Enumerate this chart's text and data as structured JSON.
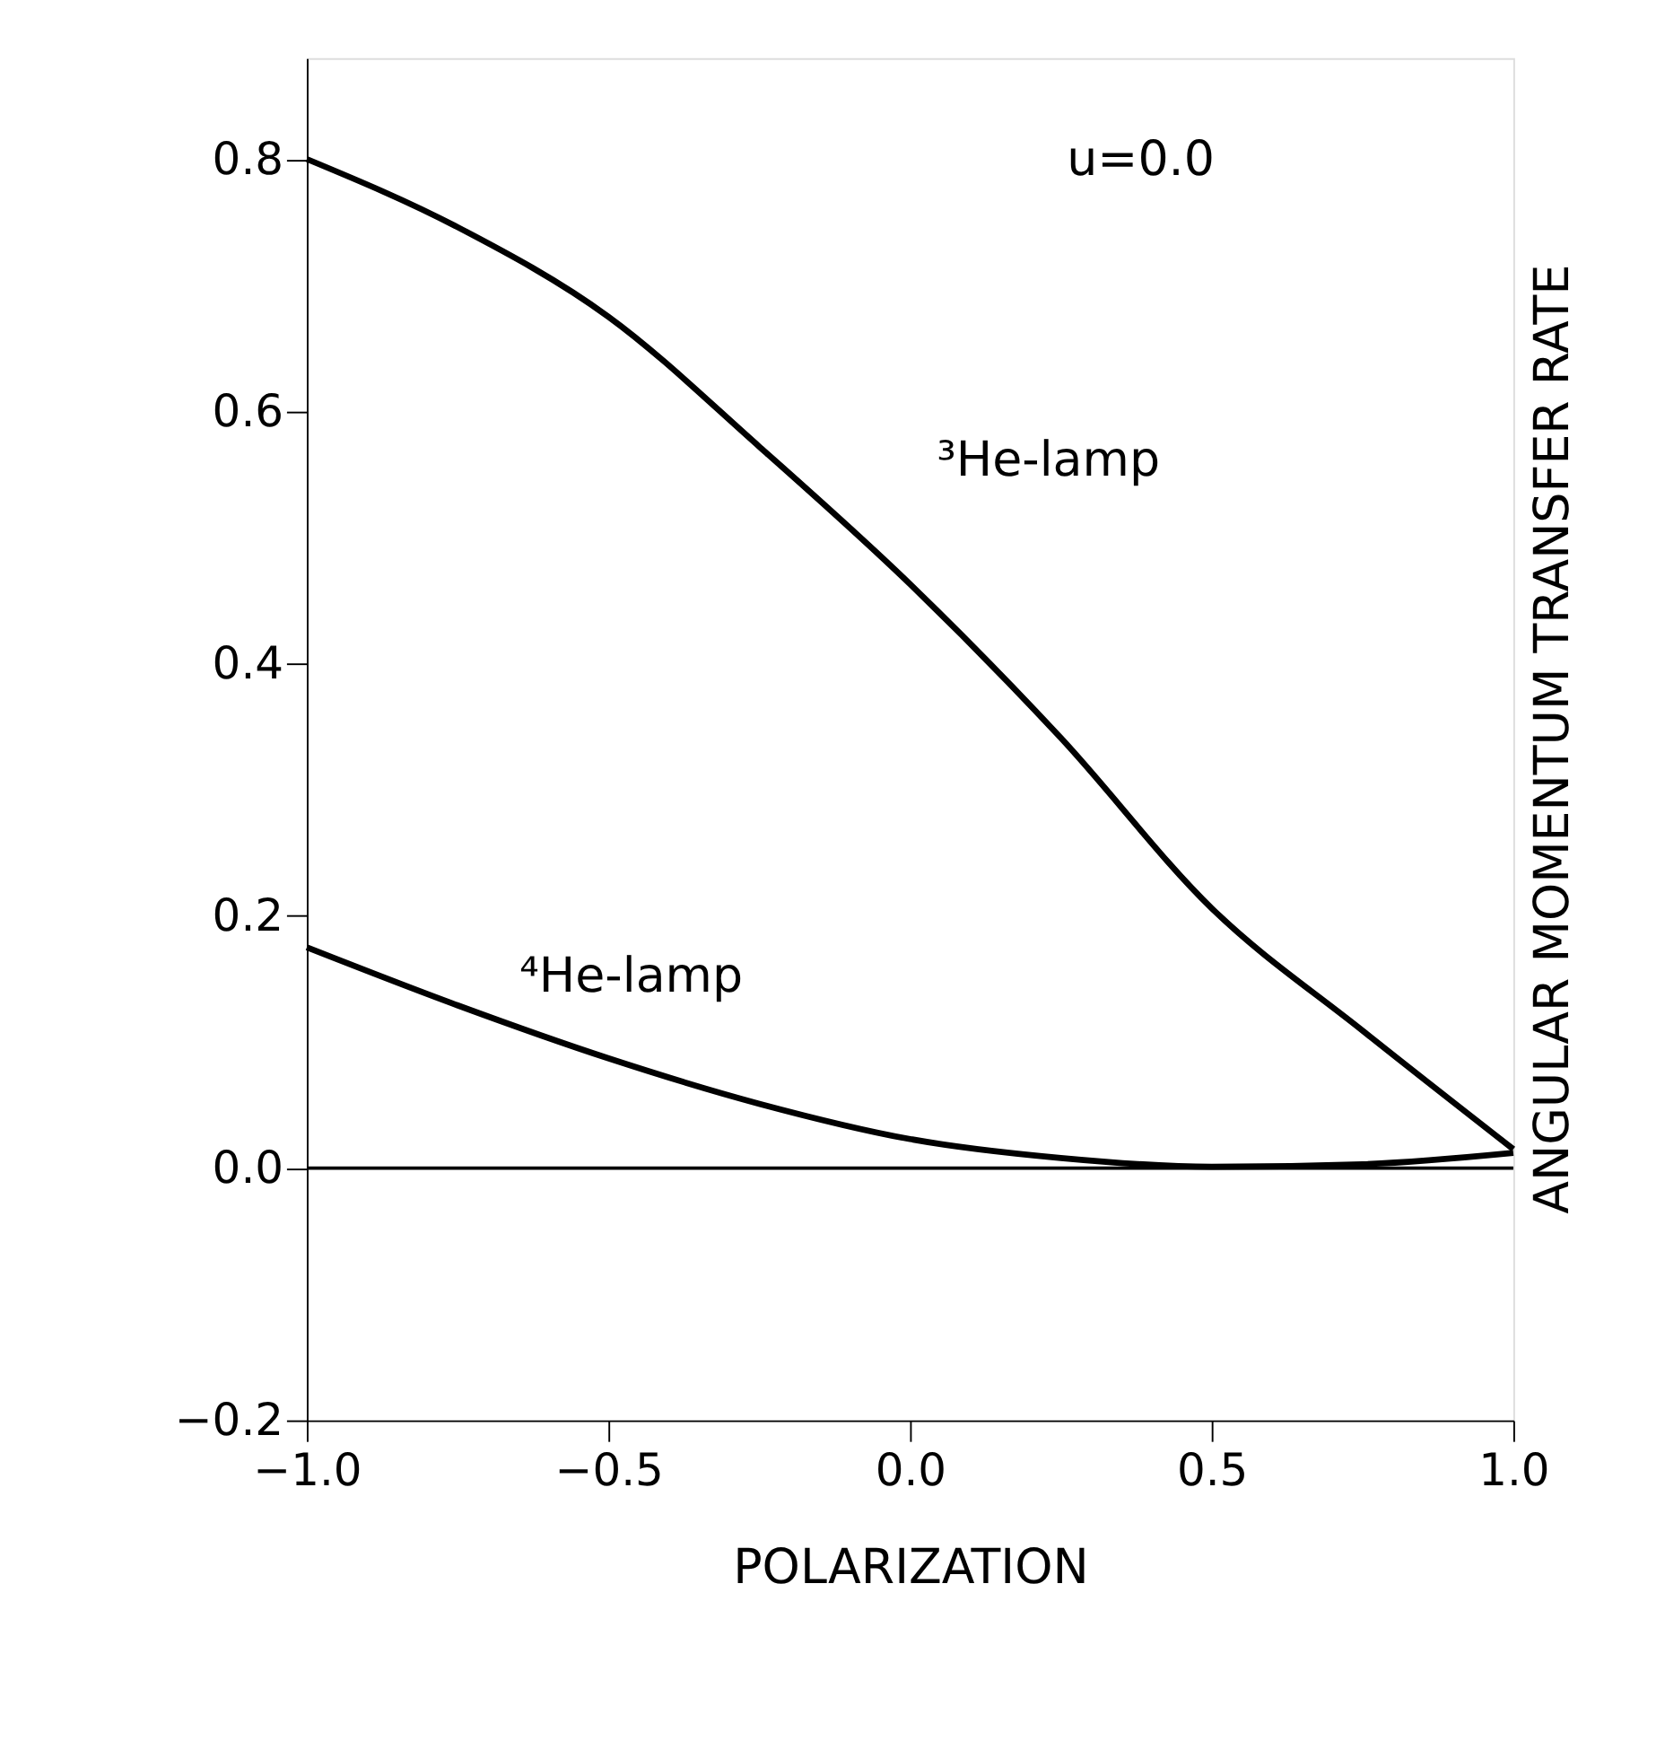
{
  "chart_data": {
    "type": "line",
    "xlabel": "POLARIZATION",
    "ylabel": "ANGULAR MOMENTUM TRANSFER RATE",
    "x": [
      -1,
      -0.75,
      -0.5,
      -0.25,
      0,
      0.25,
      0.5,
      0.75,
      1
    ],
    "series": [
      {
        "name": "³He-lamp",
        "color": "#000000",
        "values": [
          0.8,
          0.746,
          0.675,
          0.572,
          0.463,
          0.341,
          0.206,
          0.109,
          0.015
        ]
      },
      {
        "name": "⁴He-lamp",
        "color": "#000000",
        "values": [
          0.175,
          0.129,
          0.087,
          0.051,
          0.023,
          0.008,
          0.001,
          0.003,
          0.012
        ]
      }
    ],
    "xlim": [
      -1,
      1
    ],
    "ylim": [
      -0.2,
      0.88
    ],
    "xticks": [
      {
        "value": -1,
        "label": "−1.0"
      },
      {
        "value": -0.5,
        "label": "−0.5"
      },
      {
        "value": 0,
        "label": "0.0"
      },
      {
        "value": 0.5,
        "label": "0.5"
      },
      {
        "value": 1,
        "label": "1.0"
      }
    ],
    "yticks": [
      {
        "value": -0.2,
        "label": "−0.2"
      },
      {
        "value": 0,
        "label": "0.0"
      },
      {
        "value": 0.2,
        "label": "0.2"
      },
      {
        "value": 0.4,
        "label": "0.4"
      },
      {
        "value": 0.6,
        "label": "0.6"
      },
      {
        "value": 0.8,
        "label": "0.8"
      }
    ],
    "ref_lines": [
      {
        "axis": "y",
        "value": 0,
        "color": "#000000"
      }
    ],
    "annotations": [
      "u=0.0"
    ],
    "grid": false,
    "marker": "none",
    "line_style": "solid"
  }
}
